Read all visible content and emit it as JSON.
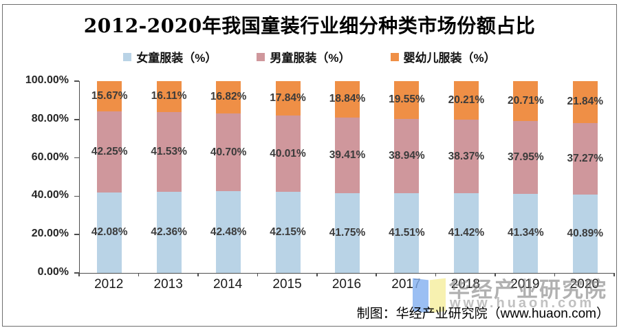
{
  "title": "2012-2020年我国童装行业细分种类市场份额占比",
  "chart_data": {
    "type": "bar",
    "stacked": true,
    "stack_total": 100,
    "title": "2012-2020年我国童装行业细分种类市场份额占比",
    "categories": [
      "2012",
      "2013",
      "2014",
      "2015",
      "2016",
      "2017",
      "2018",
      "2019",
      "2020"
    ],
    "series": [
      {
        "name": "女童服装（%）",
        "color": "#b9d3e6",
        "values": [
          42.08,
          42.36,
          42.48,
          42.15,
          41.75,
          41.51,
          41.42,
          41.34,
          40.89
        ]
      },
      {
        "name": "男童服装（%）",
        "color": "#cf979c",
        "values": [
          42.25,
          41.53,
          40.7,
          40.01,
          39.41,
          38.94,
          38.37,
          37.95,
          37.27
        ]
      },
      {
        "name": "婴幼儿服装（%）",
        "color": "#ef8f46",
        "values": [
          15.67,
          16.11,
          16.82,
          17.84,
          18.84,
          19.55,
          20.21,
          20.71,
          21.84
        ]
      }
    ],
    "y_ticks": [
      "100.00%",
      "80.00%",
      "60.00%",
      "40.00%",
      "20.00%",
      "0.00%"
    ],
    "ylim": [
      0,
      100
    ],
    "grid": false,
    "legend_position": "top",
    "data_labels": "percent, two decimals, centered on each segment"
  },
  "footer": {
    "credit": "制图：华经产业研究院（www.huaon.com）"
  },
  "watermark": {
    "name": "华经产业研究院",
    "url": "www.huaon.com",
    "logo": "open-book-logo"
  }
}
